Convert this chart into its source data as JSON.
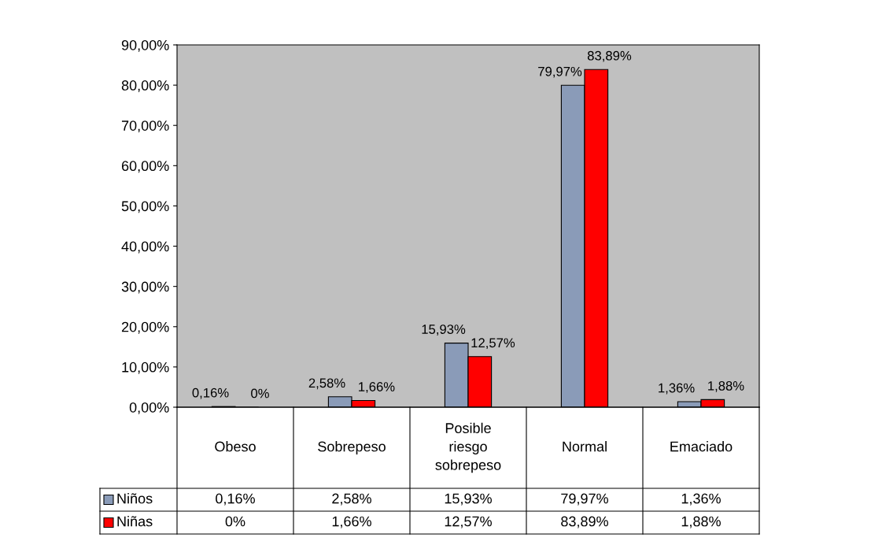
{
  "chart_data": {
    "type": "bar",
    "categories": [
      "Obeso",
      "Sobrepeso",
      "Posible riesgo sobrepeso",
      "Normal",
      "Emaciado"
    ],
    "series": [
      {
        "name": "Niños",
        "color": "#8a9bb8",
        "values": [
          0.16,
          2.58,
          15.93,
          79.97,
          1.36
        ],
        "value_labels": [
          "0,16%",
          "2,58%",
          "15,93%",
          "79,97%",
          "1,36%"
        ]
      },
      {
        "name": "Niñas",
        "color": "#ff0000",
        "values": [
          0,
          1.66,
          12.57,
          83.89,
          1.88
        ],
        "value_labels": [
          "0%",
          "1,66%",
          "12,57%",
          "83,89%",
          "1,88%"
        ]
      }
    ],
    "legend": "bottom left",
    "ylim": [
      0,
      90
    ],
    "yticks": [
      {
        "value": 0,
        "label": "0,00%"
      },
      {
        "value": 10,
        "label": "10,00%"
      },
      {
        "value": 20,
        "label": "20,00%"
      },
      {
        "value": 30,
        "label": "30,00%"
      },
      {
        "value": 40,
        "label": "40,00%"
      },
      {
        "value": 50,
        "label": "50,00%"
      },
      {
        "value": 60,
        "label": "60,00%"
      },
      {
        "value": 70,
        "label": "70,00%"
      },
      {
        "value": 80,
        "label": "80,00%"
      },
      {
        "value": 90,
        "label": "90,00%"
      }
    ]
  }
}
